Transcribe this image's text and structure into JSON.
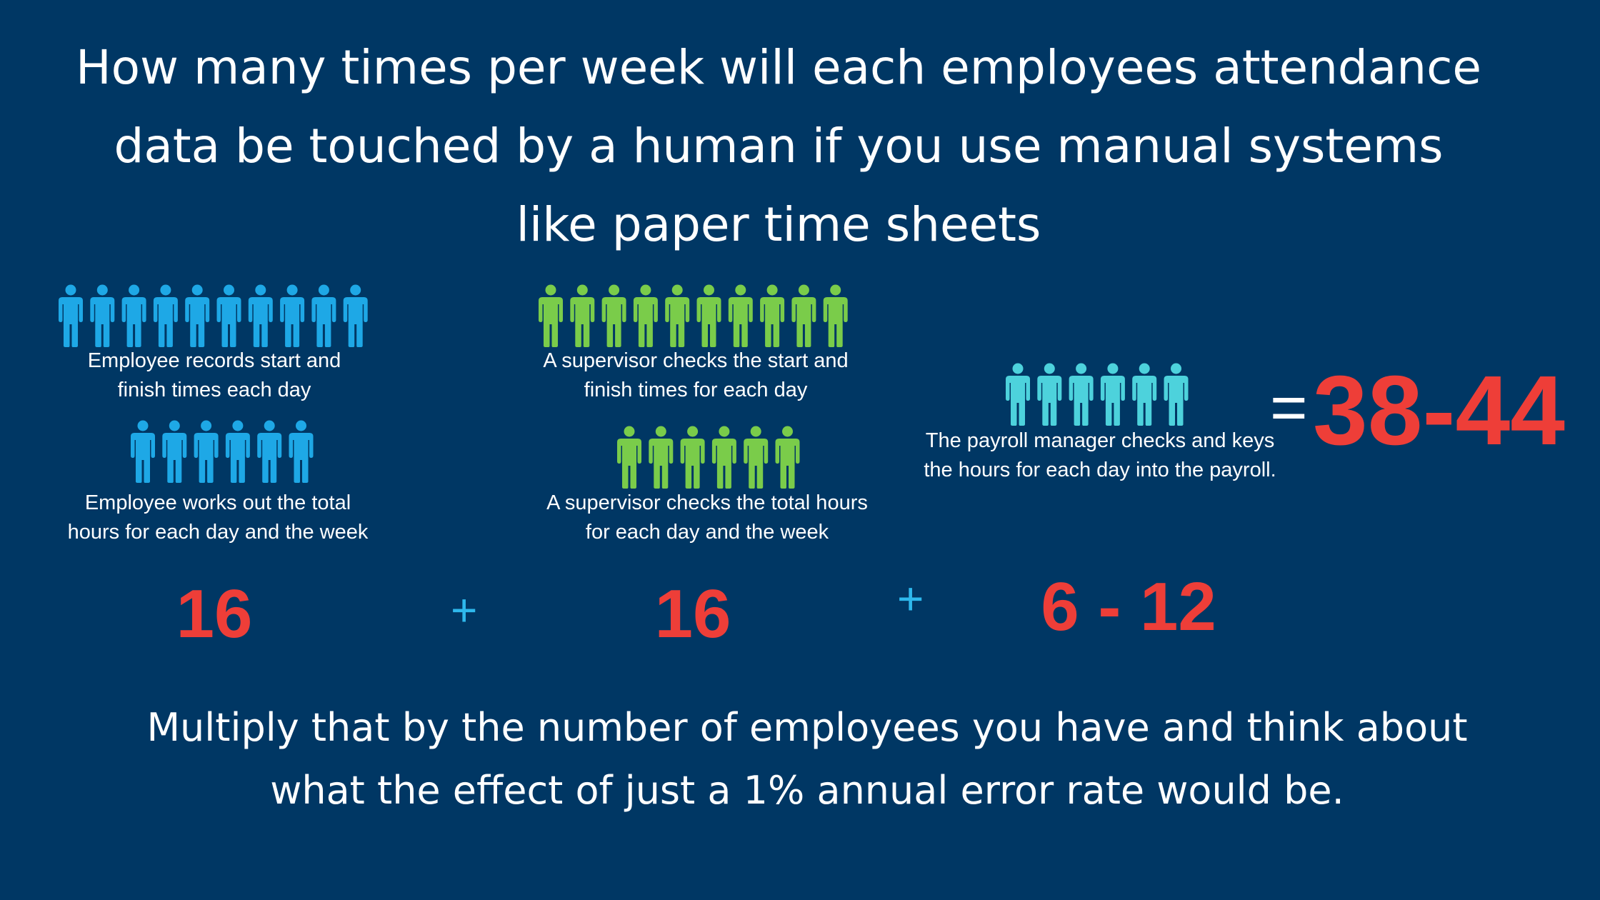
{
  "title": "How many times per week will each employees attendance\ndata be touched by a human if you use manual systems\nlike paper time sheets",
  "colors": {
    "background": "#003764",
    "employee_icon": "#1ea8e6",
    "supervisor_icon": "#7acc4a",
    "payroll_icon": "#4dd2dc",
    "number": "#ee3e38",
    "plus": "#2eb8ec"
  },
  "groups": {
    "employee": {
      "icon": "person-icon",
      "row1_count": 10,
      "row2_count": 6,
      "caption1": "Employee records start and\nfinish times each day",
      "caption2": "Employee works out the total\nhours for each day and the week",
      "total": "16"
    },
    "supervisor": {
      "icon": "person-icon",
      "row1_count": 10,
      "row2_count": 6,
      "caption1": "A supervisor checks the start and\nfinish times for each day",
      "caption2": "A supervisor checks the total hours\nfor each day and the week",
      "total": "16"
    },
    "payroll": {
      "icon": "person-icon",
      "row1_count": 6,
      "caption1": "The payroll manager checks and keys\nthe hours for each day into the payroll.",
      "total": "6 - 12"
    }
  },
  "operators": {
    "plus1": "+",
    "plus2": "+",
    "equals": "="
  },
  "result": "38-44",
  "footer": "Multiply that by the number of employees you have and think about\nwhat the effect of just a 1% annual error rate would be."
}
